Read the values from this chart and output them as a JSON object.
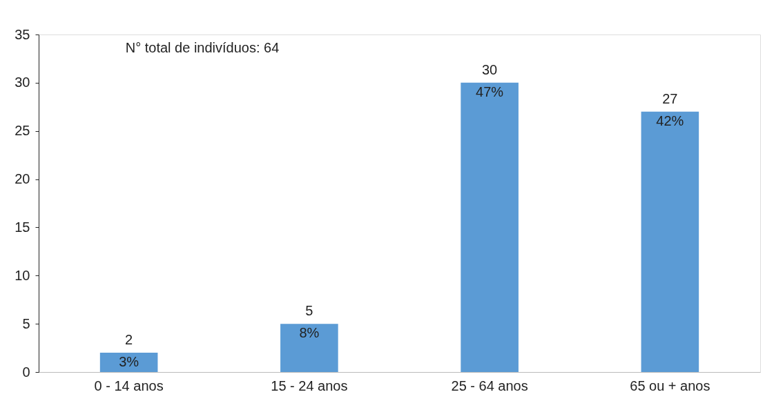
{
  "chart_data": {
    "type": "bar",
    "categories": [
      "0 - 14 anos",
      "15 - 24 anos",
      "25 - 64 anos",
      "65 ou + anos"
    ],
    "values": [
      2,
      5,
      30,
      27
    ],
    "color": "#5b9bd5",
    "ylim": [
      0,
      35
    ],
    "yticks": [
      0,
      5,
      10,
      15,
      20,
      25,
      30,
      35
    ],
    "data_labels": true,
    "grid": false,
    "annotations": [
      "N° total de indivíduos: 64",
      {
        "text": "3%",
        "x": "0 - 14 anos",
        "y": 2
      },
      {
        "text": "8%",
        "x": "15 - 24 anos",
        "y": 5
      },
      {
        "text": "47%",
        "x": "25 - 64 anos",
        "y": 30
      },
      {
        "text": "42%",
        "x": "65 ou + anos",
        "y": 27
      }
    ]
  }
}
